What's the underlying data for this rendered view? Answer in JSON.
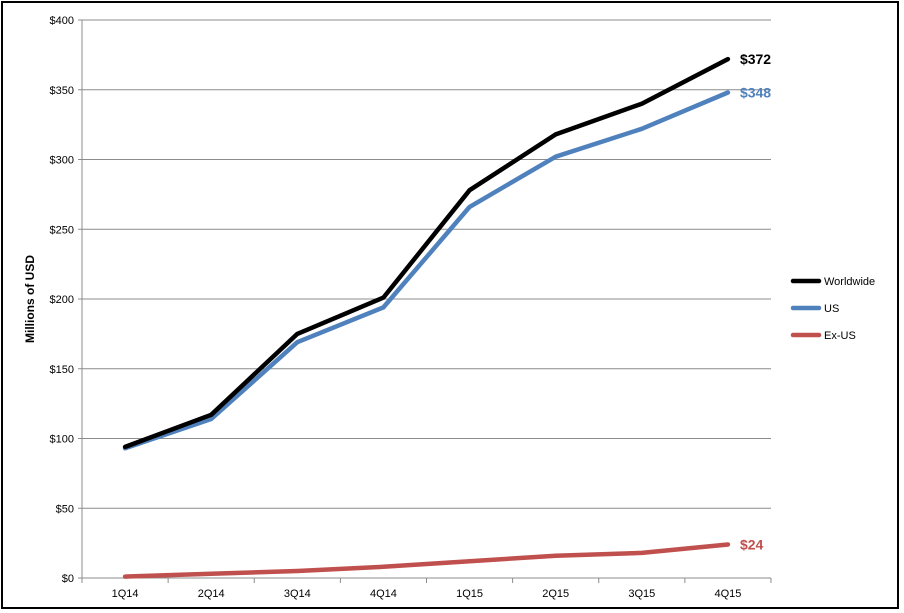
{
  "chart_data": {
    "type": "line",
    "title": "",
    "xlabel": "",
    "ylabel": "Millions of USD",
    "ylim": [
      0,
      400
    ],
    "yticks": [
      0,
      50,
      100,
      150,
      200,
      250,
      300,
      350,
      400
    ],
    "ytick_labels": [
      "$0",
      "$50",
      "$100",
      "$150",
      "$200",
      "$250",
      "$300",
      "$350",
      "$400"
    ],
    "categories": [
      "1Q14",
      "2Q14",
      "3Q14",
      "4Q14",
      "1Q15",
      "2Q15",
      "3Q15",
      "4Q15"
    ],
    "grid": "horizontal",
    "legend_position": "right",
    "series": [
      {
        "name": "Worldwide",
        "color": "#000000",
        "values": [
          94,
          117,
          175,
          201,
          278,
          318,
          340,
          372
        ],
        "end_label": "$372"
      },
      {
        "name": "US",
        "color": "#4f81bd",
        "values": [
          93,
          114,
          169,
          194,
          266,
          302,
          322,
          348
        ],
        "end_label": "$348"
      },
      {
        "name": "Ex-US",
        "color": "#c0504d",
        "values": [
          1,
          3,
          5,
          8,
          12,
          16,
          18,
          24
        ],
        "end_label": "$24"
      }
    ]
  }
}
